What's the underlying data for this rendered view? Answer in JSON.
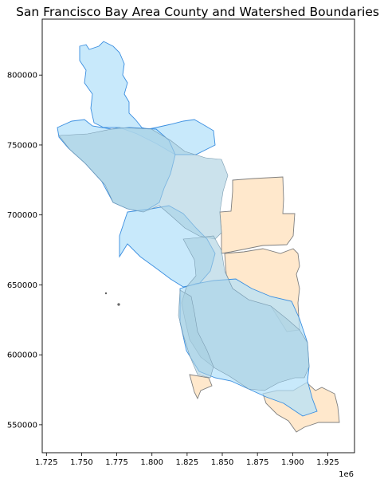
{
  "chart_data": {
    "type": "map",
    "title": "San Francisco Bay Area County and Watershed Boundaries",
    "x_ticks": [
      "1.725",
      "1.750",
      "1.775",
      "1.800",
      "1.825",
      "1.850",
      "1.875",
      "1.900",
      "1.925"
    ],
    "x_tick_values": [
      1725000,
      1750000,
      1775000,
      1800000,
      1825000,
      1850000,
      1875000,
      1900000,
      1925000
    ],
    "x_offset_label": "1e6",
    "y_ticks": [
      "550000",
      "600000",
      "650000",
      "700000",
      "750000",
      "800000"
    ],
    "y_tick_values": [
      550000,
      600000,
      650000,
      700000,
      750000,
      800000
    ],
    "xlim": [
      1722000,
      1944000
    ],
    "ylim": [
      530000,
      840000
    ],
    "layers": [
      {
        "name": "counties",
        "fill": "#ffe8cc",
        "edge": "#7f7f7f"
      },
      {
        "name": "watersheds",
        "fill": "#b3e0fa",
        "edge": "#3a8ee0"
      }
    ]
  }
}
